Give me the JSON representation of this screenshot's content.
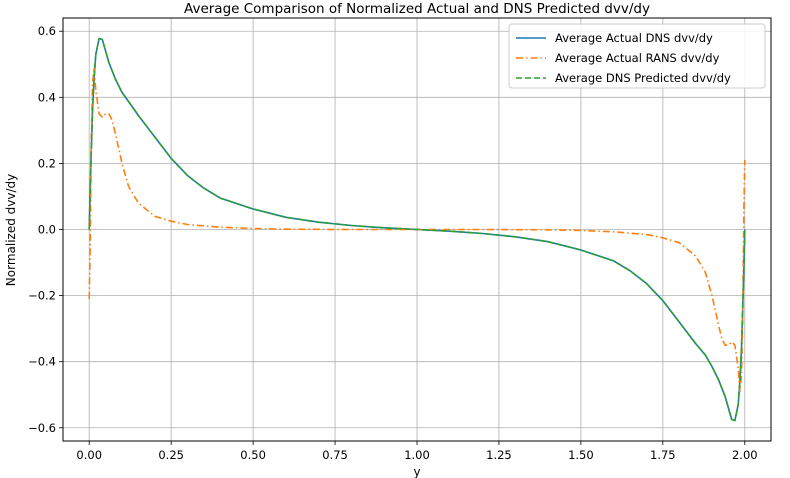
{
  "chart_data": {
    "type": "line",
    "title": "Average Comparison of Normalized Actual and DNS Predicted dvv/dy",
    "xlabel": "y",
    "ylabel": "Normalized dvv/dy",
    "xlim": [
      -0.08,
      2.08
    ],
    "ylim": [
      -0.64,
      0.64
    ],
    "x_ticks": [
      "0.00",
      "0.25",
      "0.50",
      "0.75",
      "1.00",
      "1.25",
      "1.50",
      "1.75",
      "2.00"
    ],
    "y_ticks": [
      "−0.6",
      "−0.4",
      "−0.2",
      "0.0",
      "0.2",
      "0.4",
      "0.6"
    ],
    "grid": true,
    "legend_position": "top-right",
    "series": [
      {
        "name": "Average Actual DNS dvv/dy",
        "color": "#1f77b4",
        "style": "solid",
        "x": [
          0,
          0.005,
          0.01,
          0.015,
          0.02,
          0.03,
          0.04,
          0.05,
          0.06,
          0.08,
          0.1,
          0.125,
          0.15,
          0.2,
          0.25,
          0.3,
          0.35,
          0.4,
          0.5,
          0.6,
          0.7,
          0.8,
          0.9,
          1.0,
          1.1,
          1.2,
          1.3,
          1.4,
          1.5,
          1.6,
          1.65,
          1.7,
          1.75,
          1.8,
          1.85,
          1.88,
          1.9,
          1.92,
          1.94,
          1.95,
          1.96,
          1.97,
          1.98,
          1.985,
          1.99,
          1.995,
          2.0
        ],
        "y": [
          0.0,
          0.2,
          0.36,
          0.46,
          0.53,
          0.578,
          0.575,
          0.54,
          0.505,
          0.455,
          0.415,
          0.38,
          0.345,
          0.28,
          0.215,
          0.163,
          0.125,
          0.095,
          0.062,
          0.037,
          0.022,
          0.012,
          0.005,
          0.0,
          -0.005,
          -0.012,
          -0.022,
          -0.037,
          -0.062,
          -0.095,
          -0.125,
          -0.163,
          -0.215,
          -0.28,
          -0.345,
          -0.38,
          -0.415,
          -0.455,
          -0.505,
          -0.54,
          -0.575,
          -0.578,
          -0.53,
          -0.46,
          -0.36,
          -0.2,
          0.0
        ]
      },
      {
        "name": "Average Actual RANS dvv/dy",
        "color": "#ff7f0e",
        "style": "dashdot",
        "x": [
          0,
          0.003,
          0.006,
          0.01,
          0.015,
          0.02,
          0.03,
          0.04,
          0.05,
          0.06,
          0.07,
          0.08,
          0.1,
          0.12,
          0.15,
          0.2,
          0.25,
          0.3,
          0.4,
          0.5,
          0.6,
          0.8,
          1.0,
          1.2,
          1.4,
          1.5,
          1.6,
          1.7,
          1.75,
          1.8,
          1.85,
          1.88,
          1.9,
          1.92,
          1.93,
          1.94,
          1.95,
          1.96,
          1.97,
          1.98,
          1.985,
          1.99,
          1.994,
          1.997,
          2.0
        ],
        "y": [
          -0.21,
          -0.05,
          0.25,
          0.44,
          0.49,
          0.42,
          0.35,
          0.34,
          0.35,
          0.35,
          0.33,
          0.29,
          0.2,
          0.13,
          0.08,
          0.04,
          0.025,
          0.015,
          0.007,
          0.003,
          0.001,
          0.0,
          0.0,
          0.0,
          -0.001,
          -0.003,
          -0.007,
          -0.015,
          -0.025,
          -0.04,
          -0.08,
          -0.13,
          -0.2,
          -0.29,
          -0.33,
          -0.35,
          -0.35,
          -0.34,
          -0.35,
          -0.42,
          -0.49,
          -0.44,
          -0.25,
          0.05,
          0.21
        ]
      },
      {
        "name": "Average DNS Predicted dvv/dy",
        "color": "#2ca02c",
        "style": "dashed",
        "x": [
          0,
          0.005,
          0.01,
          0.015,
          0.02,
          0.03,
          0.04,
          0.05,
          0.06,
          0.08,
          0.1,
          0.125,
          0.15,
          0.2,
          0.25,
          0.3,
          0.35,
          0.4,
          0.5,
          0.6,
          0.7,
          0.8,
          0.9,
          1.0,
          1.1,
          1.2,
          1.3,
          1.4,
          1.5,
          1.6,
          1.65,
          1.7,
          1.75,
          1.8,
          1.85,
          1.88,
          1.9,
          1.92,
          1.94,
          1.95,
          1.96,
          1.97,
          1.98,
          1.985,
          1.99,
          1.995,
          2.0
        ],
        "y": [
          0.0,
          0.2,
          0.36,
          0.46,
          0.53,
          0.578,
          0.575,
          0.54,
          0.505,
          0.455,
          0.415,
          0.38,
          0.345,
          0.28,
          0.215,
          0.163,
          0.125,
          0.095,
          0.062,
          0.037,
          0.022,
          0.012,
          0.005,
          0.0,
          -0.005,
          -0.012,
          -0.022,
          -0.037,
          -0.062,
          -0.095,
          -0.125,
          -0.163,
          -0.215,
          -0.28,
          -0.345,
          -0.38,
          -0.415,
          -0.455,
          -0.505,
          -0.54,
          -0.575,
          -0.578,
          -0.53,
          -0.46,
          -0.36,
          -0.2,
          0.0
        ]
      }
    ]
  }
}
